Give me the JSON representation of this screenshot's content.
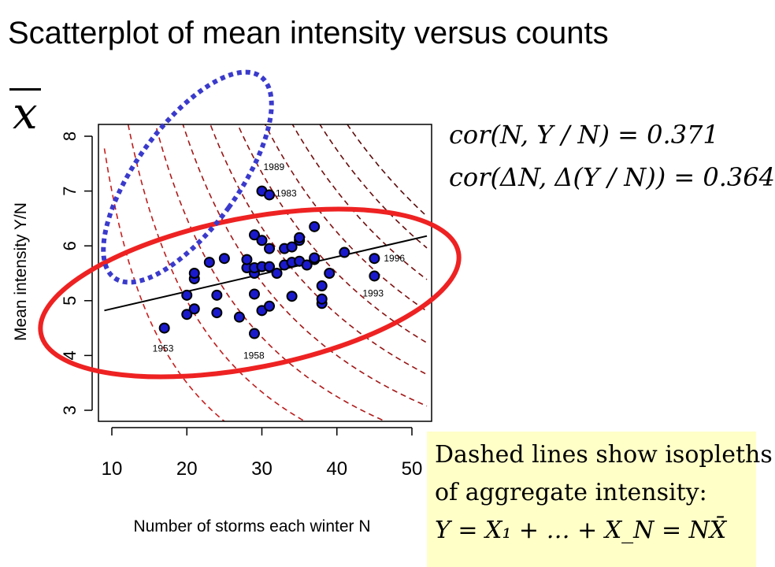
{
  "slide": {
    "title": "Scatterplot of mean intensity versus counts",
    "symbol": "x",
    "formulas": [
      "cor(N, Y / N) = 0.371",
      "cor(ΔN, Δ(Y / N)) = 0.364"
    ],
    "note": {
      "line1": "Dashed lines show isopleths",
      "line2": "of aggregate intensity:",
      "equation": "Y = X₁ + … + X_N = NX̄"
    }
  },
  "colors": {
    "points": "#1a1acc",
    "regression": "#000000",
    "isopleths": "#aa1111",
    "ellipse_red": "#ee2222",
    "ellipse_blue": "#3a3acc",
    "note_bg": "#ffffc8"
  },
  "chart_data": {
    "type": "scatter",
    "xlabel": "Number of storms each winter N",
    "ylabel": "Mean intensity Y/N",
    "xlim": [
      9,
      52
    ],
    "ylim": [
      2.8,
      8.2
    ],
    "xticks": [
      10,
      20,
      30,
      40,
      50
    ],
    "yticks": [
      3,
      4,
      5,
      6,
      7,
      8
    ],
    "points": [
      {
        "x": 17,
        "y": 4.5
      },
      {
        "x": 20,
        "y": 4.75
      },
      {
        "x": 20,
        "y": 5.1
      },
      {
        "x": 21,
        "y": 4.85
      },
      {
        "x": 21,
        "y": 5.4
      },
      {
        "x": 21,
        "y": 5.5
      },
      {
        "x": 23,
        "y": 5.7
      },
      {
        "x": 24,
        "y": 4.78
      },
      {
        "x": 24,
        "y": 5.1
      },
      {
        "x": 25,
        "y": 5.77
      },
      {
        "x": 27,
        "y": 4.7
      },
      {
        "x": 28,
        "y": 5.6
      },
      {
        "x": 28,
        "y": 5.75
      },
      {
        "x": 29,
        "y": 4.4
      },
      {
        "x": 29,
        "y": 5.12
      },
      {
        "x": 29,
        "y": 5.5
      },
      {
        "x": 29,
        "y": 5.6
      },
      {
        "x": 29,
        "y": 6.2
      },
      {
        "x": 30,
        "y": 4.82
      },
      {
        "x": 30,
        "y": 5.62
      },
      {
        "x": 30,
        "y": 6.1
      },
      {
        "x": 30,
        "y": 7.0
      },
      {
        "x": 31,
        "y": 4.9
      },
      {
        "x": 31,
        "y": 5.62
      },
      {
        "x": 31,
        "y": 5.95
      },
      {
        "x": 31,
        "y": 6.93
      },
      {
        "x": 32,
        "y": 5.5
      },
      {
        "x": 33,
        "y": 5.65
      },
      {
        "x": 33,
        "y": 5.95
      },
      {
        "x": 34,
        "y": 5.08
      },
      {
        "x": 34,
        "y": 5.7
      },
      {
        "x": 34,
        "y": 5.98
      },
      {
        "x": 35,
        "y": 5.72
      },
      {
        "x": 35,
        "y": 6.1
      },
      {
        "x": 35,
        "y": 6.15
      },
      {
        "x": 36,
        "y": 5.65
      },
      {
        "x": 37,
        "y": 5.75
      },
      {
        "x": 37,
        "y": 5.78
      },
      {
        "x": 37,
        "y": 6.35
      },
      {
        "x": 38,
        "y": 4.95
      },
      {
        "x": 38,
        "y": 5.03
      },
      {
        "x": 38,
        "y": 5.27
      },
      {
        "x": 39,
        "y": 5.5
      },
      {
        "x": 41,
        "y": 5.88
      },
      {
        "x": 45,
        "y": 5.45
      },
      {
        "x": 45,
        "y": 5.77
      }
    ],
    "annotations": [
      {
        "text": "1989",
        "x": 30,
        "y": 6.95
      },
      {
        "text": "1983",
        "x": 31,
        "y": 6.93
      },
      {
        "text": "1996",
        "x": 45,
        "y": 5.77
      },
      {
        "text": "1993",
        "x": 45,
        "y": 5.45
      },
      {
        "text": "1953",
        "x": 17,
        "y": 4.5
      },
      {
        "text": "1958",
        "x": 29,
        "y": 4.4
      }
    ],
    "regression": {
      "x": [
        9,
        52
      ],
      "y": [
        4.82,
        6.18
      ]
    },
    "isopleth_levels": [
      70,
      100,
      130,
      160,
      190,
      220,
      250,
      280,
      310,
      340
    ]
  }
}
